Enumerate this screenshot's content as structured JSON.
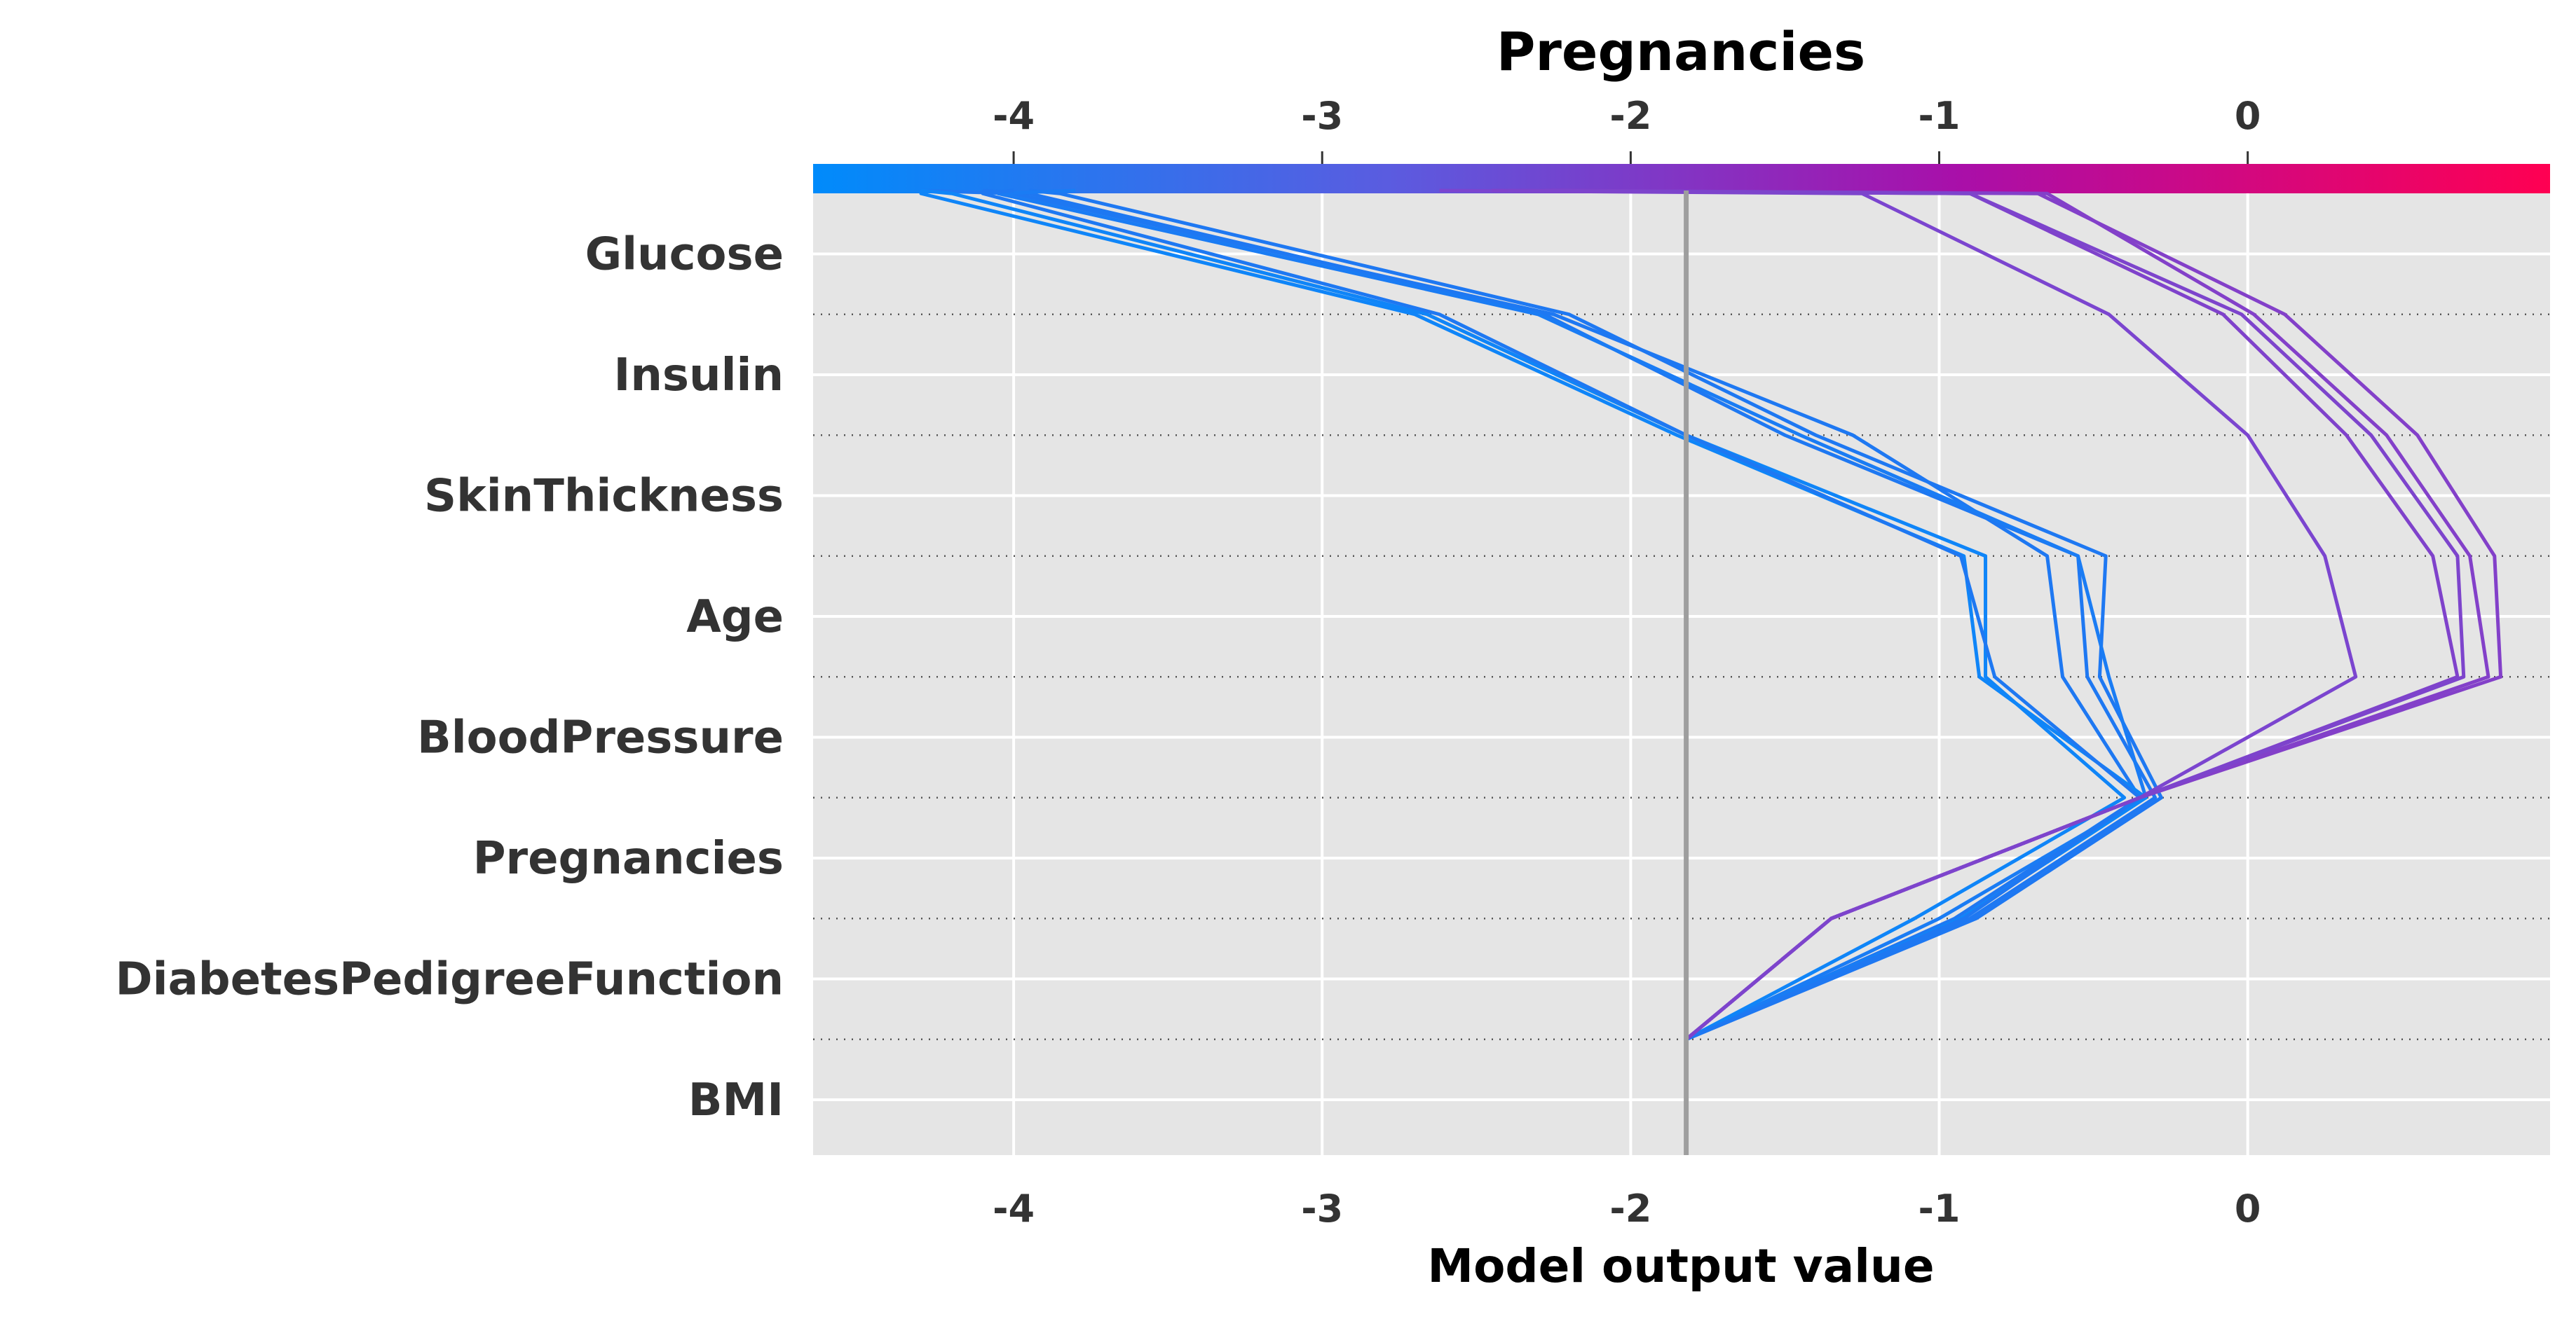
{
  "chart_data": {
    "type": "decision",
    "colorbar_title": "Pregnancies",
    "xlabel": "Model output value",
    "xlim": [
      -4.65,
      0.98
    ],
    "x_ticks": [
      -4,
      -3,
      -2,
      -1,
      0
    ],
    "x_tick_labels": [
      "-4",
      "-3",
      "-2",
      "-1",
      "0"
    ],
    "top_ticks": [
      -4,
      -3,
      -2,
      -1,
      0
    ],
    "top_tick_labels": [
      "-4",
      "-3",
      "-2",
      "-1",
      "0"
    ],
    "base_value": -1.82,
    "features_bottom_to_top": [
      "BMI",
      "DiabetesPedigreeFunction",
      "Pregnancies",
      "BloodPressure",
      "Age",
      "SkinThickness",
      "Insulin",
      "Glucose"
    ],
    "colorbar_colors": [
      "#008bfb",
      "#5a5ce0",
      "#a90fa9",
      "#ff0052"
    ],
    "grid": true,
    "series": [
      {
        "values": [
          -1.82,
          -0.95,
          -0.35,
          -0.6,
          -0.65,
          -1.28,
          -2.25,
          -4.0
        ],
        "color": "#1e78f2"
      },
      {
        "values": [
          -1.82,
          -0.9,
          -0.3,
          -0.52,
          -0.55,
          -1.5,
          -2.28,
          -3.95
        ],
        "color": "#1e78f2"
      },
      {
        "values": [
          -1.82,
          -0.88,
          -0.28,
          -0.48,
          -0.46,
          -1.4,
          -2.2,
          -3.85
        ],
        "color": "#1e78f2"
      },
      {
        "values": [
          -1.82,
          -1.0,
          -0.33,
          -0.45,
          -0.55,
          -1.45,
          -2.3,
          -4.05
        ],
        "color": "#1a7cf4"
      },
      {
        "values": [
          -1.82,
          -0.93,
          -0.33,
          -0.87,
          -0.92,
          -1.85,
          -2.7,
          -4.3
        ],
        "color": "#0f85f8"
      },
      {
        "values": [
          -1.82,
          -1.08,
          -0.4,
          -0.85,
          -0.85,
          -1.82,
          -2.66,
          -4.2
        ],
        "color": "#0f85f8"
      },
      {
        "values": [
          -1.82,
          -0.92,
          -0.35,
          -0.82,
          -0.93,
          -1.82,
          -2.62,
          -4.1
        ],
        "color": "#1e78f2"
      },
      {
        "values": [
          -1.82,
          -1.35,
          -0.35,
          0.35,
          0.25,
          0.0,
          -0.45,
          -1.25
        ],
        "color": "#7b45cf"
      },
      {
        "values": [
          -1.82,
          -1.35,
          -0.35,
          0.68,
          0.6,
          0.32,
          -0.08,
          -0.9
        ],
        "color": "#7f42cb"
      },
      {
        "values": [
          -1.82,
          -1.35,
          -0.35,
          0.78,
          0.72,
          0.45,
          0.02,
          -0.65
        ],
        "color": "#8340c9"
      },
      {
        "values": [
          -1.82,
          -1.35,
          -0.35,
          0.82,
          0.8,
          0.55,
          0.12,
          -0.68
        ],
        "color": "#8340c9"
      },
      {
        "values": [
          -1.82,
          -1.35,
          -0.35,
          0.7,
          0.68,
          0.4,
          -0.02,
          -0.9
        ],
        "color": "#7d44cc"
      }
    ],
    "series_top_values": [
      -4.3,
      -4.1,
      -3.95,
      -3.8,
      -4.3,
      -4.3,
      -4.0,
      -2.62,
      -2.45,
      -2.28,
      -2.25,
      -2.4
    ]
  }
}
